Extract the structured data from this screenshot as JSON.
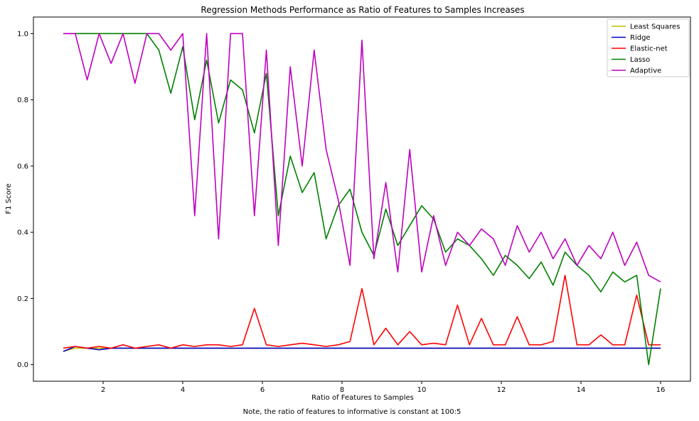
{
  "chart_data": {
    "type": "line",
    "title": "Regression Methods Performance as Ratio of Features to Samples Increases",
    "xlabel": "Ratio of Features to Samples",
    "ylabel": "F1 Score",
    "note": "Note, the ratio of features to informative is constant at 100:5",
    "xlim": [
      0.25,
      16.75
    ],
    "ylim": [
      -0.05,
      1.05
    ],
    "xticks": [
      2,
      4,
      6,
      8,
      10,
      12,
      14,
      16
    ],
    "yticks": [
      0.0,
      0.2,
      0.4,
      0.6,
      0.8,
      1.0
    ],
    "grid": false,
    "legend_position": "top-right",
    "x": [
      1.0,
      1.3,
      1.6,
      1.9,
      2.2,
      2.5,
      2.8,
      3.1,
      3.4,
      3.7,
      4.0,
      4.3,
      4.6,
      4.9,
      5.2,
      5.5,
      5.8,
      6.1,
      6.4,
      6.7,
      7.0,
      7.3,
      7.6,
      7.9,
      8.2,
      8.5,
      8.8,
      9.1,
      9.4,
      9.7,
      10.0,
      10.3,
      10.6,
      10.9,
      11.2,
      11.5,
      11.8,
      12.1,
      12.4,
      12.7,
      13.0,
      13.3,
      13.6,
      13.9,
      14.2,
      14.5,
      14.8,
      15.1,
      15.4,
      15.7,
      16.0
    ],
    "series": [
      {
        "name": "Least Squares",
        "color": "#bfbf00",
        "values": [
          0.04,
          0.05,
          0.05,
          0.05,
          0.05,
          0.05,
          0.05,
          0.05,
          0.05,
          0.05,
          0.05,
          0.05,
          0.05,
          0.05,
          0.05,
          0.05,
          0.05,
          0.05,
          0.05,
          0.05,
          0.05,
          0.05,
          0.05,
          0.05,
          0.05,
          0.05,
          0.05,
          0.05,
          0.05,
          0.05,
          0.05,
          0.05,
          0.05,
          0.05,
          0.05,
          0.05,
          0.05,
          0.05,
          0.05,
          0.05,
          0.05,
          0.05,
          0.05,
          0.05,
          0.05,
          0.05,
          0.05,
          0.05,
          0.05,
          0.05,
          0.05
        ]
      },
      {
        "name": "Ridge",
        "color": "#0000cc",
        "values": [
          0.04,
          0.055,
          0.05,
          0.045,
          0.05,
          0.05,
          0.05,
          0.05,
          0.05,
          0.05,
          0.05,
          0.05,
          0.05,
          0.05,
          0.05,
          0.05,
          0.05,
          0.05,
          0.05,
          0.05,
          0.05,
          0.05,
          0.05,
          0.05,
          0.05,
          0.05,
          0.05,
          0.05,
          0.05,
          0.05,
          0.05,
          0.05,
          0.05,
          0.05,
          0.05,
          0.05,
          0.05,
          0.05,
          0.05,
          0.05,
          0.05,
          0.05,
          0.05,
          0.05,
          0.05,
          0.05,
          0.05,
          0.05,
          0.05,
          0.05,
          0.05
        ]
      },
      {
        "name": "Elastic-net",
        "color": "#ff0000",
        "values": [
          0.05,
          0.055,
          0.05,
          0.055,
          0.05,
          0.06,
          0.05,
          0.055,
          0.06,
          0.05,
          0.06,
          0.055,
          0.06,
          0.06,
          0.055,
          0.06,
          0.17,
          0.06,
          0.055,
          0.06,
          0.065,
          0.06,
          0.055,
          0.06,
          0.07,
          0.23,
          0.06,
          0.11,
          0.06,
          0.1,
          0.06,
          0.065,
          0.06,
          0.18,
          0.06,
          0.14,
          0.06,
          0.06,
          0.145,
          0.06,
          0.06,
          0.07,
          0.27,
          0.06,
          0.06,
          0.09,
          0.06,
          0.06,
          0.21,
          0.06,
          0.06
        ]
      },
      {
        "name": "Lasso",
        "color": "#008000",
        "values": [
          1.0,
          1.0,
          1.0,
          1.0,
          1.0,
          1.0,
          1.0,
          1.0,
          0.95,
          0.82,
          0.96,
          0.74,
          0.92,
          0.73,
          0.86,
          0.83,
          0.7,
          0.88,
          0.45,
          0.63,
          0.52,
          0.58,
          0.38,
          0.48,
          0.53,
          0.4,
          0.33,
          0.47,
          0.36,
          0.42,
          0.48,
          0.44,
          0.34,
          0.38,
          0.36,
          0.32,
          0.27,
          0.33,
          0.3,
          0.26,
          0.31,
          0.24,
          0.34,
          0.3,
          0.27,
          0.22,
          0.28,
          0.25,
          0.27,
          0.0,
          0.23
        ]
      },
      {
        "name": "Adaptive",
        "color": "#bf00bf",
        "values": [
          1.0,
          1.0,
          0.86,
          1.0,
          0.91,
          1.0,
          0.85,
          1.0,
          1.0,
          0.95,
          1.0,
          0.45,
          1.0,
          0.38,
          1.0,
          1.0,
          0.45,
          0.95,
          0.36,
          0.9,
          0.6,
          0.95,
          0.65,
          0.5,
          0.3,
          0.98,
          0.32,
          0.55,
          0.28,
          0.65,
          0.28,
          0.45,
          0.3,
          0.4,
          0.36,
          0.41,
          0.38,
          0.3,
          0.42,
          0.34,
          0.4,
          0.32,
          0.38,
          0.3,
          0.36,
          0.32,
          0.4,
          0.3,
          0.37,
          0.27,
          0.25
        ]
      }
    ]
  }
}
